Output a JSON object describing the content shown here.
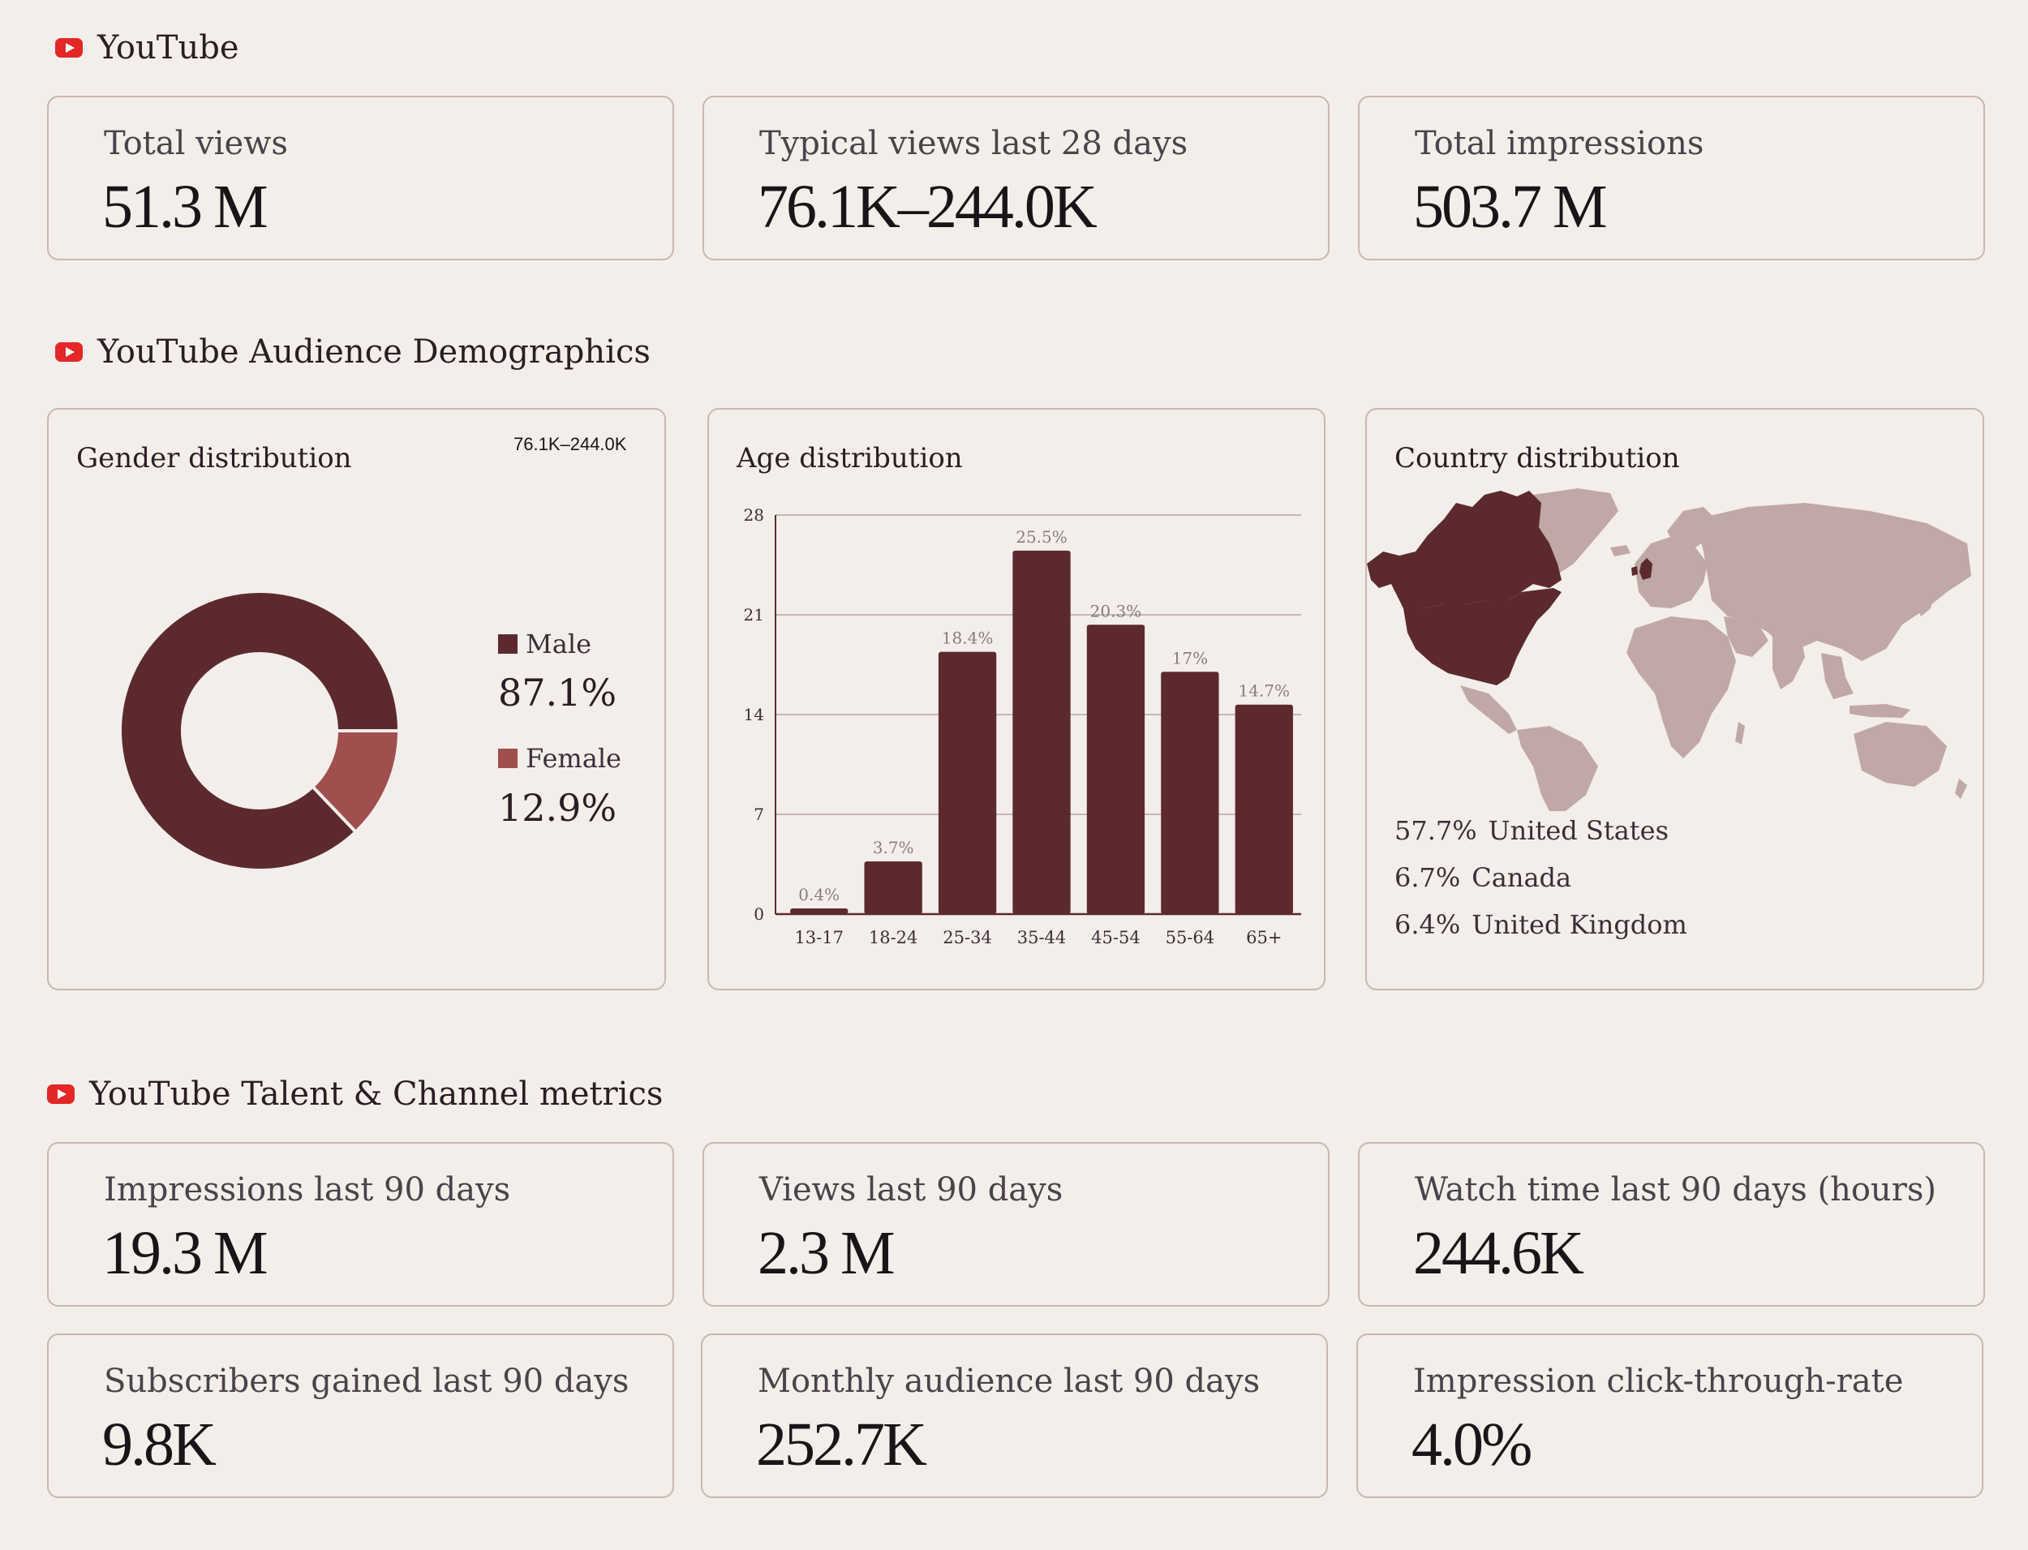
{
  "sections": {
    "youtube": "YouTube",
    "demographics": "YouTube Audience Demographics",
    "talent": "YouTube Talent & Channel metrics"
  },
  "top_kpis": [
    {
      "label": "Total views",
      "value": "51.3 M"
    },
    {
      "label": "Typical views last 28 days",
      "value": "76.1K–244.0K"
    },
    {
      "label": "Total impressions",
      "value": "503.7 M"
    }
  ],
  "gender": {
    "title": "Gender distribution",
    "range": "76.1K–244.0K",
    "items": [
      {
        "label": "Male",
        "pct": "87.1%",
        "value": 87.1,
        "color": "#5c2a2d"
      },
      {
        "label": "Female",
        "pct": "12.9%",
        "value": 12.9,
        "color": "#a04e4e"
      }
    ]
  },
  "age": {
    "title": "Age distribution"
  },
  "country": {
    "title": "Country distribution",
    "items": [
      {
        "pct": "57.7%",
        "name": "United States"
      },
      {
        "pct": "6.7%",
        "name": "Canada"
      },
      {
        "pct": "6.4%",
        "name": "United Kingdom"
      }
    ]
  },
  "bottom_kpis": [
    {
      "label": "Impressions last 90 days",
      "value": "19.3 M"
    },
    {
      "label": "Views last 90 days",
      "value": "2.3 M"
    },
    {
      "label": "Watch time last 90 days (hours)",
      "value": "244.6K"
    },
    {
      "label": "Subscribers gained last 90 days",
      "value": "9.8K"
    },
    {
      "label": "Monthly audience last 90 days",
      "value": "252.7K"
    },
    {
      "label": "Impression click-through-rate",
      "value": "4.0%"
    }
  ],
  "colors": {
    "bar": "#5c2a2d",
    "map_highlight": "#5c2a2d",
    "map_base": "#bfa8a6",
    "accent_red": "#e32626"
  },
  "chart_data": {
    "type": "bar",
    "title": "Age distribution",
    "categories": [
      "13-17",
      "18-24",
      "25-34",
      "35-44",
      "45-54",
      "55-64",
      "65+"
    ],
    "values": [
      0.4,
      3.7,
      18.4,
      25.5,
      20.3,
      17,
      14.7
    ],
    "value_labels": [
      "0.4%",
      "3.7%",
      "18.4%",
      "25.5%",
      "20.3%",
      "17%",
      "14.7%"
    ],
    "yticks": [
      0,
      7,
      14,
      21,
      28
    ],
    "ylim": [
      0,
      28
    ],
    "xlabel": "",
    "ylabel": "",
    "grid": true
  }
}
